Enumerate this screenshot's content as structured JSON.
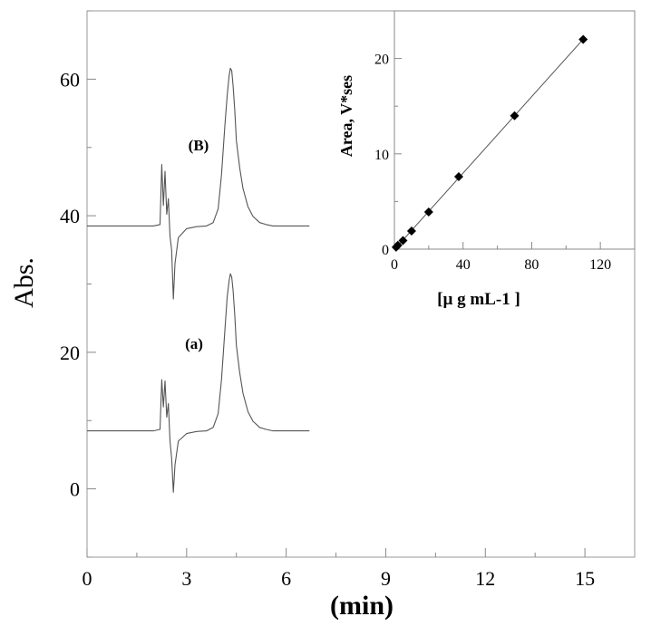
{
  "chart_data": [
    {
      "type": "line",
      "title": "",
      "xlabel": "(min)",
      "ylabel": "Abs.",
      "xlim": [
        0,
        16.5
      ],
      "ylim": [
        -10,
        70
      ],
      "xticks": [
        0,
        3,
        6,
        9,
        12,
        15
      ],
      "yticks": [
        0,
        20,
        40,
        60
      ],
      "grid": false,
      "series": [
        {
          "name": "",
          "label": "(B)",
          "x": [
            0,
            2.0,
            2.2,
            2.25,
            2.3,
            2.35,
            2.4,
            2.45,
            2.5,
            2.55,
            2.6,
            2.65,
            2.75,
            3.0,
            3.3,
            3.6,
            3.8,
            3.95,
            4.05,
            4.15,
            4.22,
            4.28,
            4.32,
            4.36,
            4.4,
            4.45,
            4.5,
            4.6,
            4.7,
            4.85,
            5.0,
            5.2,
            5.4,
            5.6,
            6.7
          ],
          "y": [
            38.5,
            38.5,
            38.7,
            47.5,
            41.5,
            46.5,
            40.2,
            42.5,
            37.0,
            35.0,
            27.8,
            33.0,
            36.8,
            38.1,
            38.4,
            38.5,
            39.0,
            41.0,
            46.0,
            53.0,
            57.5,
            60.5,
            61.6,
            61.2,
            59.0,
            55.5,
            51.0,
            47.0,
            44.0,
            41.3,
            39.9,
            39.0,
            38.7,
            38.5,
            38.5
          ]
        },
        {
          "name": "",
          "label": "(a)",
          "x": [
            0,
            2.0,
            2.2,
            2.25,
            2.3,
            2.35,
            2.4,
            2.45,
            2.5,
            2.55,
            2.6,
            2.65,
            2.75,
            3.0,
            3.3,
            3.6,
            3.8,
            3.95,
            4.05,
            4.15,
            4.22,
            4.28,
            4.32,
            4.36,
            4.4,
            4.45,
            4.5,
            4.6,
            4.7,
            4.85,
            5.0,
            5.2,
            5.4,
            5.6,
            6.7
          ],
          "y": [
            8.5,
            8.5,
            8.7,
            16.0,
            12.0,
            15.8,
            10.5,
            12.5,
            7.0,
            4.5,
            -0.5,
            3.5,
            7.0,
            8.1,
            8.4,
            8.5,
            9.0,
            11.0,
            16.0,
            23.0,
            28.0,
            30.5,
            31.5,
            31.0,
            29.0,
            25.5,
            21.0,
            17.0,
            14.0,
            11.3,
            9.9,
            9.0,
            8.7,
            8.5,
            8.5
          ]
        }
      ]
    },
    {
      "type": "scatter",
      "title": "",
      "xlabel": "[µ g mL-1 ]",
      "ylabel": "Area, V*ses",
      "xlim": [
        0,
        140
      ],
      "ylim": [
        0,
        25
      ],
      "xticks": [
        0,
        40,
        80,
        120
      ],
      "yticks": [
        0,
        10,
        20
      ],
      "grid": false,
      "trendline": true,
      "series": [
        {
          "name": "",
          "x": [
            1,
            2,
            5,
            10,
            20,
            37.5,
            70,
            110
          ],
          "y": [
            0.2,
            0.4,
            0.9,
            1.9,
            3.9,
            7.6,
            14.0,
            22.0
          ]
        }
      ]
    }
  ]
}
